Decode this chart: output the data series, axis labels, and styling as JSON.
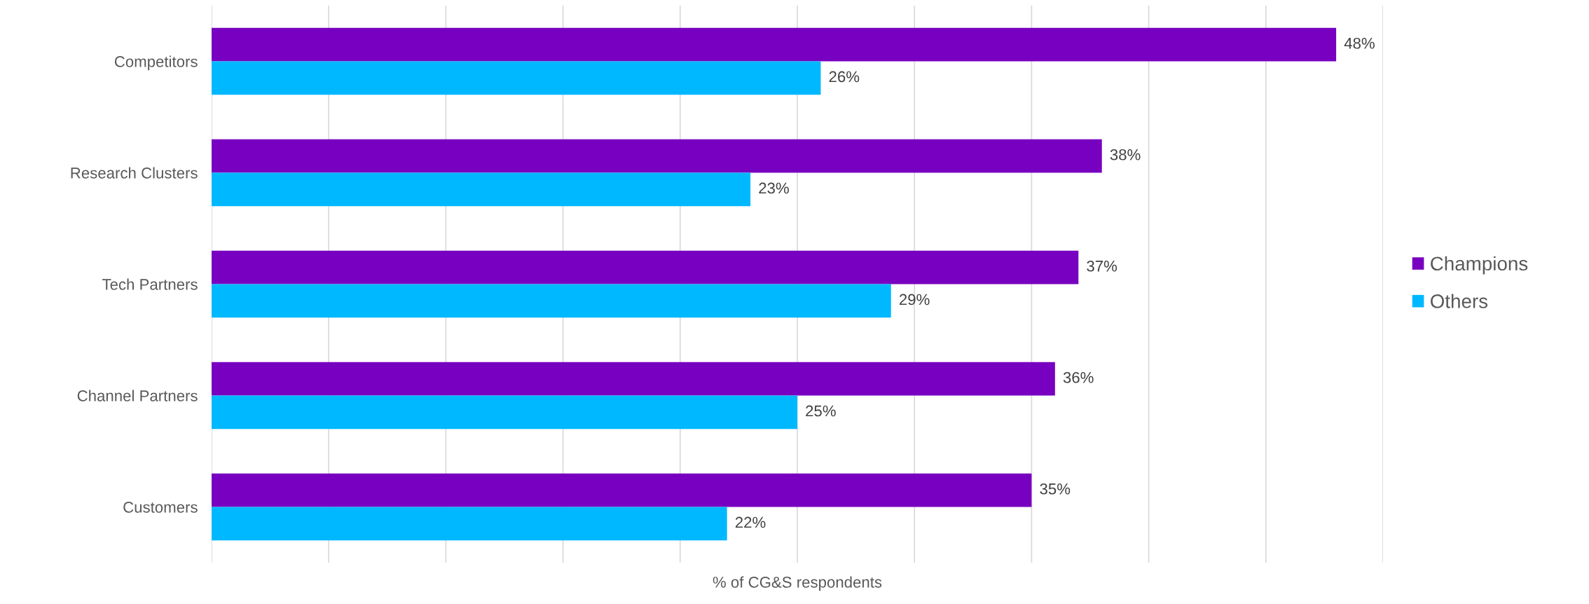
{
  "chart_data": {
    "type": "bar",
    "orientation": "horizontal",
    "xlabel": "% of CG&S respondents",
    "categories": [
      "Competitors",
      "Research Clusters",
      "Tech Partners",
      "Channel Partners",
      "Customers"
    ],
    "series": [
      {
        "name": "Champions",
        "color": "#7800c0",
        "values": [
          48,
          38,
          37,
          36,
          35
        ],
        "value_labels": [
          "48%",
          "38%",
          "37%",
          "36%",
          "35%"
        ]
      },
      {
        "name": "Others",
        "color": "#00b8ff",
        "values": [
          26,
          23,
          29,
          25,
          22
        ],
        "value_labels": [
          "26%",
          "23%",
          "29%",
          "25%",
          "22%"
        ]
      }
    ],
    "xlim": [
      0,
      50
    ],
    "xticks": [
      {
        "value": 0,
        "label": null
      },
      {
        "value": 5,
        "label": null
      },
      {
        "value": 10,
        "label": null
      },
      {
        "value": 15,
        "label": null
      },
      {
        "value": 20,
        "label": null
      },
      {
        "value": 25,
        "label": null
      },
      {
        "value": 30,
        "label": null
      },
      {
        "value": 35,
        "label": null
      },
      {
        "value": 40,
        "label": null
      },
      {
        "value": 45,
        "label": null
      },
      {
        "value": 50,
        "label": null
      }
    ],
    "grid": "x",
    "legend": "right",
    "tick_labels": "y"
  }
}
